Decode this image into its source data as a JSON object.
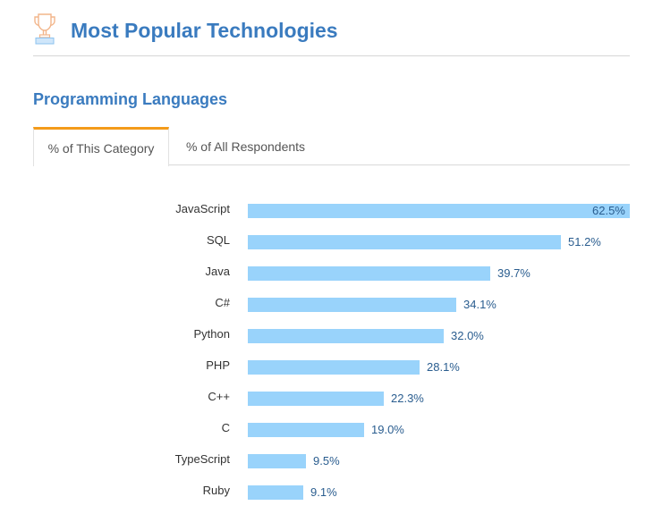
{
  "header": {
    "icon": "trophy-icon",
    "title": "Most Popular Technologies"
  },
  "section": {
    "title": "Programming Languages"
  },
  "tabs": [
    {
      "label": "% of This Category",
      "active": true
    },
    {
      "label": "% of All Respondents",
      "active": false
    }
  ],
  "colors": {
    "title": "#3a7bbf",
    "bar": "#99d3fb",
    "value_text": "#2a5d8f",
    "active_tab_border": "#f49b1a"
  },
  "chart_data": {
    "type": "bar",
    "orientation": "horizontal",
    "title": "Programming Languages",
    "categories": [
      "JavaScript",
      "SQL",
      "Java",
      "C#",
      "Python",
      "PHP",
      "C++",
      "C",
      "TypeScript",
      "Ruby"
    ],
    "values": [
      62.5,
      51.2,
      39.7,
      34.1,
      32.0,
      28.1,
      22.3,
      19.0,
      9.5,
      9.1
    ],
    "value_labels": [
      "62.5%",
      "51.2%",
      "39.7%",
      "34.1%",
      "32.0%",
      "28.1%",
      "22.3%",
      "19.0%",
      "9.5%",
      "9.1%"
    ],
    "xlabel": "",
    "ylabel": "",
    "unit": "%",
    "grid": false,
    "legend": false
  }
}
